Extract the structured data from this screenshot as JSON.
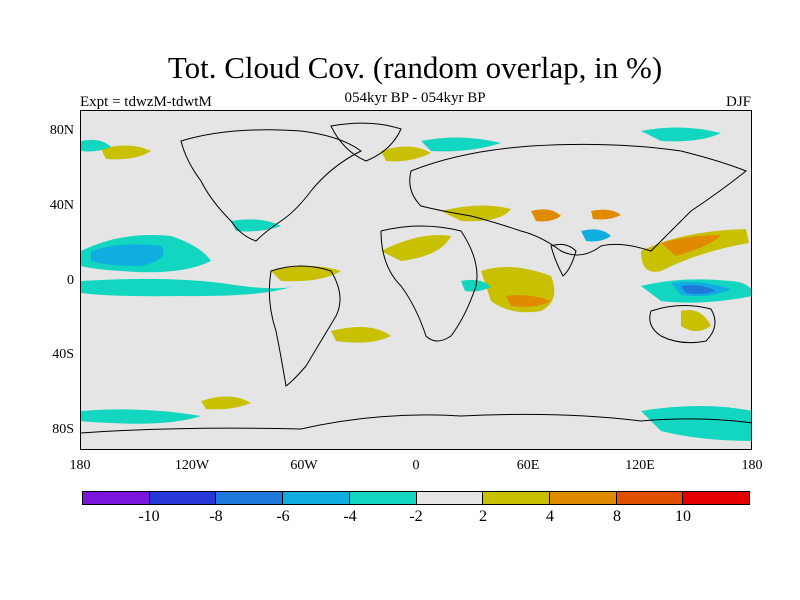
{
  "title": "Tot. Cloud Cov. (random overlap, in %)",
  "subtitle": "054kyr BP - 054kyr BP",
  "experiment": "Expt = tdwzM-tdwtM",
  "season": "DJF",
  "map": {
    "projection": "cylindrical-equidistant",
    "background_color": "#e5e5e5",
    "lon_range": [
      -180,
      180
    ],
    "lat_range": [
      -90,
      90
    ],
    "y_axis_labels": [
      "80N",
      "40N",
      "0",
      "40S",
      "80S"
    ],
    "x_axis_labels": [
      "180",
      "120W",
      "60W",
      "0",
      "60E",
      "120E",
      "180"
    ]
  },
  "colorbar": {
    "colors": [
      "#7b16dc",
      "#2838d6",
      "#1f78dc",
      "#10aee0",
      "#12d6c0",
      "#e5e5e5",
      "#c8c000",
      "#e08a00",
      "#e05000",
      "#e50000"
    ],
    "labels": [
      "-10",
      "-8",
      "-6",
      "-4",
      "-2",
      "2",
      "4",
      "8",
      "10"
    ]
  }
}
